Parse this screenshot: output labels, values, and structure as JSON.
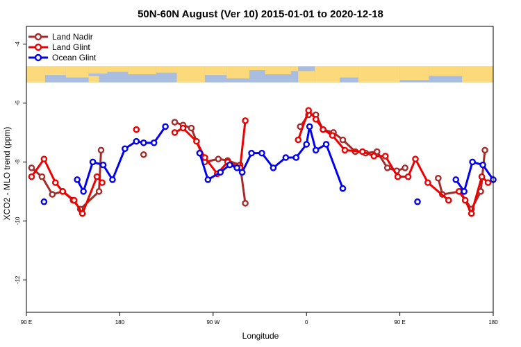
{
  "chart_data": {
    "type": "line",
    "title": "50N-60N August (Ver 10)   2015-01-01 to 2020-12-18",
    "xlabel": "Longitude",
    "ylabel": "XCO2 - MLO trend (ppm)",
    "xlim": [
      90,
      540
    ],
    "ylim": [
      -13.1,
      -3.4
    ],
    "x_ticks": [
      {
        "value": 90,
        "label": "90 E"
      },
      {
        "value": 180,
        "label": "180"
      },
      {
        "value": 270,
        "label": "90 W"
      },
      {
        "value": 360,
        "label": "0"
      },
      {
        "value": 450,
        "label": "90 E"
      },
      {
        "value": 540,
        "label": "180"
      }
    ],
    "y_ticks": [
      {
        "value": -4,
        "label": "-4"
      },
      {
        "value": -6,
        "label": "-6"
      },
      {
        "value": -8,
        "label": "-8"
      },
      {
        "value": -10,
        "label": "-10"
      },
      {
        "value": -12,
        "label": "-12"
      }
    ],
    "map_strip": {
      "y_top": -4.75,
      "y_bottom": -5.3,
      "ocean_color": "#a9bde0",
      "land_color": "#fcd97a"
    },
    "legend_position": "top-left",
    "series": [
      {
        "name": "Land Nadir",
        "color": "#a52a2a",
        "segments": [
          [
            [
              95,
              -8.2
            ],
            [
              105,
              -8.5
            ],
            [
              115,
              -9.1
            ],
            [
              125,
              -9.0
            ],
            [
              135,
              -9.3
            ],
            [
              142,
              -9.6
            ],
            [
              160,
              -9.0
            ],
            [
              162,
              -7.6
            ]
          ],
          [
            [
              203,
              -7.75
            ]
          ],
          [
            [
              233,
              -6.65
            ],
            [
              241,
              -6.75
            ],
            [
              249,
              -6.85
            ],
            [
              262,
              -8.0
            ],
            [
              275,
              -7.9
            ],
            [
              284,
              -7.95
            ],
            [
              296,
              -8.1
            ],
            [
              301,
              -9.4
            ]
          ],
          [
            [
              487,
              -8.55
            ],
            [
              491,
              -9.1
            ],
            [
              508,
              -9.0
            ],
            [
              519,
              -9.6
            ],
            [
              528,
              -9.0
            ],
            [
              532,
              -7.6
            ]
          ],
          [
            [
              354,
              -6.8
            ],
            [
              362,
              -6.4
            ],
            [
              369,
              -6.4
            ],
            [
              376,
              -6.9
            ],
            [
              386,
              -7.0
            ],
            [
              395,
              -7.25
            ],
            [
              407,
              -7.65
            ],
            [
              417,
              -7.7
            ],
            [
              428,
              -7.65
            ],
            [
              438,
              -8.2
            ],
            [
              447,
              -8.3
            ],
            [
              455,
              -8.2
            ]
          ]
        ]
      },
      {
        "name": "Land Glint",
        "color": "#ee0000",
        "segments": [
          [
            [
              95,
              -8.5
            ],
            [
              107,
              -7.9
            ],
            [
              118,
              -8.7
            ],
            [
              125,
              -9.0
            ],
            [
              136,
              -9.3
            ],
            [
              144,
              -9.75
            ],
            [
              158,
              -8.5
            ],
            [
              163,
              -8.7
            ]
          ],
          [
            [
              196,
              -6.9
            ]
          ],
          [
            [
              233,
              -7.0
            ],
            [
              241,
              -6.85
            ],
            [
              254,
              -7.3
            ],
            [
              262,
              -7.85
            ],
            [
              274,
              -8.4
            ],
            [
              284,
              -8.0
            ],
            [
              296,
              -8.2
            ],
            [
              301,
              -6.6
            ]
          ],
          [
            [
              507,
              -9.0
            ],
            [
              513,
              -9.3
            ],
            [
              519,
              -9.75
            ],
            [
              529,
              -8.5
            ],
            [
              535,
              -8.7
            ]
          ],
          [
            [
              352,
              -7.25
            ],
            [
              362,
              -6.25
            ],
            [
              369,
              -6.55
            ],
            [
              376,
              -6.9
            ],
            [
              385,
              -7.1
            ],
            [
              397,
              -7.6
            ],
            [
              414,
              -7.65
            ],
            [
              425,
              -7.8
            ],
            [
              436,
              -7.8
            ],
            [
              448,
              -8.5
            ],
            [
              458,
              -8.5
            ],
            [
              465,
              -7.9
            ],
            [
              477,
              -8.7
            ],
            [
              497,
              -9.3
            ]
          ]
        ]
      },
      {
        "name": "Ocean Glint",
        "color": "#0000ee",
        "segments": [
          [
            [
              107,
              -9.35
            ]
          ],
          [
            [
              139,
              -8.6
            ],
            [
              145,
              -9.0
            ],
            [
              154,
              -8.0
            ],
            [
              164,
              -8.1
            ],
            [
              173,
              -8.6
            ],
            [
              185,
              -7.55
            ],
            [
              196,
              -7.3
            ],
            [
              203,
              -7.35
            ],
            [
              213,
              -7.35
            ],
            [
              224,
              -6.8
            ]
          ],
          [
            [
              257,
              -7.7
            ],
            [
              265,
              -8.6
            ],
            [
              277,
              -8.35
            ],
            [
              286,
              -8.1
            ],
            [
              293,
              -8.2
            ],
            [
              298,
              -8.35
            ],
            [
              307,
              -7.7
            ],
            [
              317,
              -7.7
            ],
            [
              328,
              -8.2
            ],
            [
              340,
              -7.85
            ],
            [
              350,
              -7.85
            ],
            [
              360,
              -7.4
            ],
            [
              363,
              -6.8
            ],
            [
              369,
              -7.6
            ],
            [
              379,
              -7.4
            ],
            [
              395,
              -8.9
            ]
          ],
          [
            [
              467,
              -9.35
            ]
          ],
          [
            [
              504,
              -8.6
            ],
            [
              512,
              -9.0
            ],
            [
              520,
              -8.0
            ],
            [
              530,
              -8.1
            ],
            [
              540,
              -8.6
            ]
          ]
        ]
      }
    ]
  }
}
